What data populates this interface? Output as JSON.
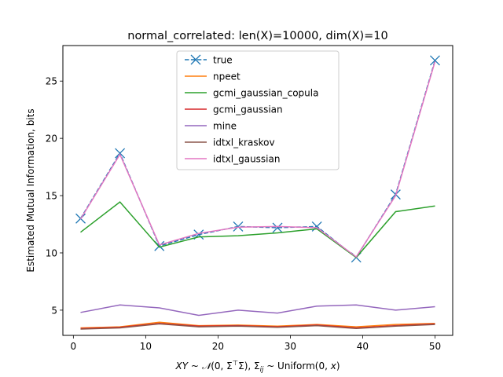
{
  "chart_data": {
    "type": "line",
    "title": "normal_correlated: len(X)=10000, dim(X)=10",
    "xlabel_parts": [
      "XY",
      " ~ ",
      "𝒩",
      "(0, Σ",
      "⊤",
      "Σ), Σ",
      "ij",
      " ~ Uniform(0, ",
      "x",
      ")"
    ],
    "ylabel": "Estimated Mutual Information, bits",
    "xlim": [
      -1.45,
      52.45
    ],
    "ylim": [
      2.8,
      28.1
    ],
    "xticks": [
      0,
      10,
      20,
      30,
      40,
      50
    ],
    "yticks": [
      5,
      10,
      15,
      20,
      25
    ],
    "legend_position": "upper-center",
    "x": [
      1.0,
      6.44,
      11.89,
      17.33,
      22.78,
      28.22,
      33.67,
      39.11,
      44.56,
      50.0
    ],
    "series": [
      {
        "name": "true",
        "color": "#1f77b4",
        "dashed": true,
        "marker": "x",
        "values": [
          13.0,
          18.7,
          10.6,
          11.6,
          12.3,
          12.2,
          12.3,
          9.6,
          15.1,
          26.8
        ]
      },
      {
        "name": "npeet",
        "color": "#ff7f0e",
        "dashed": false,
        "marker": null,
        "values": [
          3.45,
          3.55,
          3.95,
          3.65,
          3.7,
          3.6,
          3.75,
          3.55,
          3.75,
          3.85
        ]
      },
      {
        "name": "gcmi_gaussian_copula",
        "color": "#2ca02c",
        "dashed": false,
        "marker": null,
        "values": [
          11.8,
          14.45,
          10.5,
          11.4,
          11.5,
          11.75,
          12.1,
          9.6,
          13.6,
          14.1
        ]
      },
      {
        "name": "gcmi_gaussian",
        "color": "#d62728",
        "dashed": false,
        "marker": null,
        "values": [
          3.4,
          3.5,
          3.85,
          3.6,
          3.65,
          3.55,
          3.7,
          3.45,
          3.65,
          3.8
        ]
      },
      {
        "name": "mine",
        "color": "#9467bd",
        "dashed": false,
        "marker": null,
        "values": [
          4.8,
          5.45,
          5.2,
          4.55,
          5.0,
          4.75,
          5.35,
          5.45,
          5.0,
          5.3
        ]
      },
      {
        "name": "idtxl_kraskov",
        "color": "#8c564b",
        "dashed": false,
        "marker": null,
        "values": [
          3.35,
          3.45,
          3.8,
          3.55,
          3.6,
          3.5,
          3.65,
          3.4,
          3.6,
          3.75
        ]
      },
      {
        "name": "idtxl_gaussian",
        "color": "#e377c2",
        "dashed": false,
        "marker": null,
        "values": [
          12.95,
          18.6,
          10.7,
          11.7,
          12.25,
          12.3,
          12.2,
          9.65,
          15.0,
          26.7
        ]
      }
    ]
  }
}
